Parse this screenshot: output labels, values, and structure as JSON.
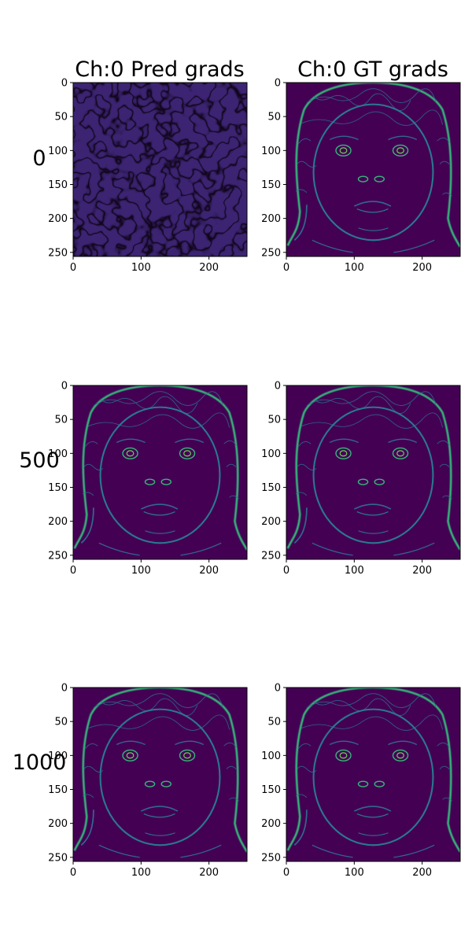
{
  "chart_data": {
    "type": "heatmap",
    "colormap": "viridis",
    "column_titles": [
      "Ch:0 Pred grads",
      "Ch:0 GT grads"
    ],
    "row_labels": [
      "0",
      "500",
      "1000"
    ],
    "x_ticks": [
      "0",
      "100",
      "200"
    ],
    "y_ticks": [
      "0",
      "50",
      "100",
      "150",
      "200",
      "250"
    ],
    "xlim": [
      0,
      256
    ],
    "ylim": [
      256,
      0
    ],
    "image_size": [
      256,
      256
    ],
    "panels": [
      {
        "row": "0",
        "column": "Ch:0 Pred grads",
        "content": "noise"
      },
      {
        "row": "0",
        "column": "Ch:0 GT grads",
        "content": "face-edges"
      },
      {
        "row": "500",
        "column": "Ch:0 Pred grads",
        "content": "face-edges"
      },
      {
        "row": "500",
        "column": "Ch:0 GT grads",
        "content": "face-edges"
      },
      {
        "row": "1000",
        "column": "Ch:0 Pred grads",
        "content": "face-edges"
      },
      {
        "row": "1000",
        "column": "Ch:0 GT grads",
        "content": "face-edges"
      }
    ],
    "colors": {
      "background": "#440154",
      "mid": "#31688e",
      "edge": "#35b779",
      "bright": "#b5de2b"
    }
  }
}
